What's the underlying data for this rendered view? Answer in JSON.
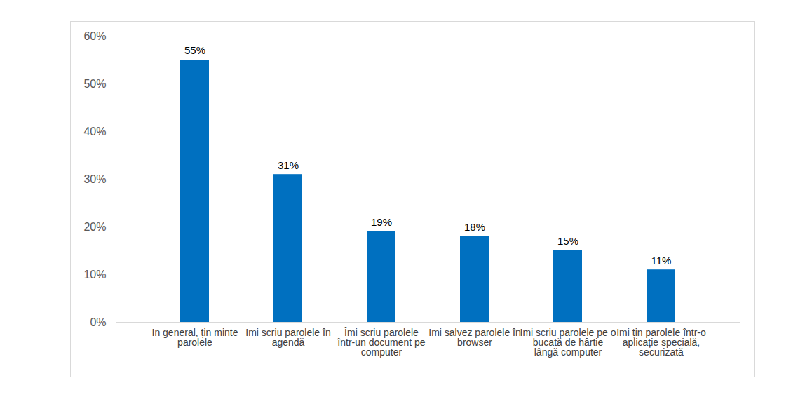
{
  "chart_data": {
    "type": "bar",
    "categories": [
      "In general, țin minte parolele",
      "Imi scriu parolele în agendă",
      "Îmi scriu parolele într-un document pe computer",
      "Imi salvez parolele în browser",
      "Imi scriu parolele pe o bucată de hârtie lângă computer",
      "Imi țin parolele într-o aplicație specială, securizată"
    ],
    "values": [
      55,
      31,
      19,
      18,
      15,
      11
    ],
    "value_labels": [
      "55%",
      "31%",
      "19%",
      "18%",
      "15%",
      "11%"
    ],
    "color": "#0070c0",
    "ylim": [
      0,
      60
    ],
    "yticks": [
      {
        "value": 0,
        "label": "0%"
      },
      {
        "value": 10,
        "label": "10%"
      },
      {
        "value": 20,
        "label": "20%"
      },
      {
        "value": 30,
        "label": "30%"
      },
      {
        "value": 40,
        "label": "40%"
      },
      {
        "value": 50,
        "label": "50%"
      },
      {
        "value": 60,
        "label": "60%"
      }
    ],
    "grid": false,
    "data_labels": true
  }
}
